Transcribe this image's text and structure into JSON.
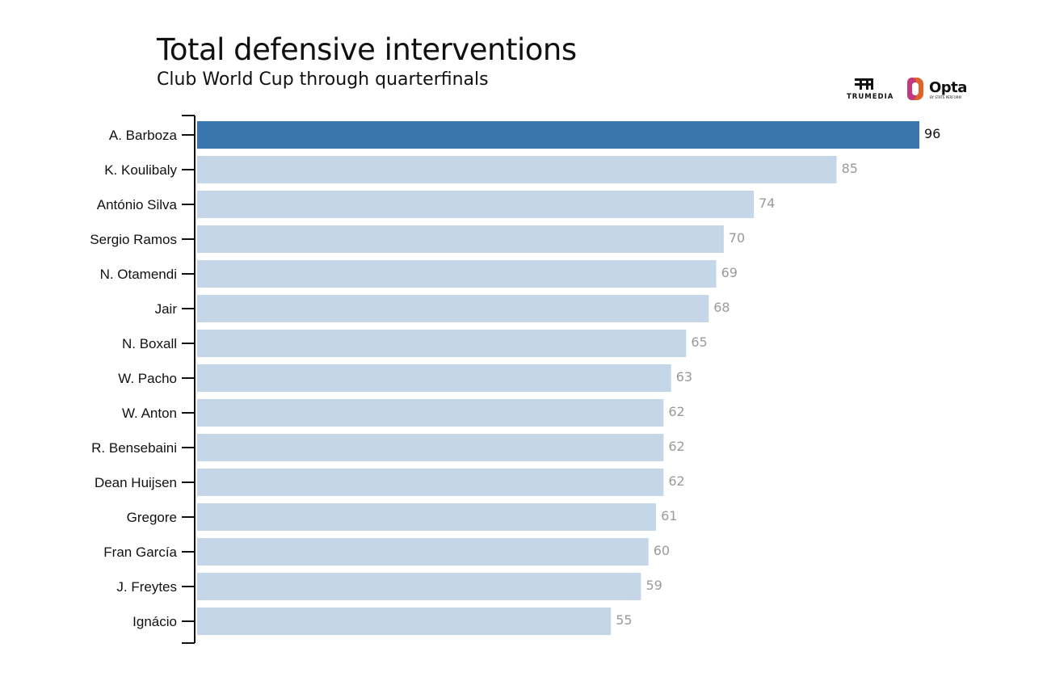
{
  "title": "Total defensive interventions",
  "subtitle": "Club World Cup through quarterfinals",
  "logos": {
    "trumedia": "TRUMEDIA",
    "opta": "Opta",
    "opta_tagline": "BY STATS PERFORM"
  },
  "colors": {
    "highlight": "#3a76ad",
    "bar": "#c5d6e8",
    "highlight_label": "#111111",
    "label": "#9a9a9a",
    "axis": "#111111"
  },
  "chart_data": {
    "type": "bar",
    "orientation": "horizontal",
    "categories": [
      "A. Barboza",
      "K. Koulibaly",
      "António Silva",
      "Sergio Ramos",
      "N. Otamendi",
      "Jair",
      "N. Boxall",
      "W. Pacho",
      "W. Anton",
      "R. Bensebaini",
      "Dean Huijsen",
      "Gregore",
      "Fran García",
      "J. Freytes",
      "Ignácio"
    ],
    "values": [
      96,
      85,
      74,
      70,
      69,
      68,
      65,
      63,
      62,
      62,
      62,
      61,
      60,
      59,
      55
    ],
    "highlight_index": 0,
    "xlim": [
      0,
      96
    ],
    "grid": false,
    "data_labels": true,
    "xlabel": "",
    "ylabel": ""
  }
}
